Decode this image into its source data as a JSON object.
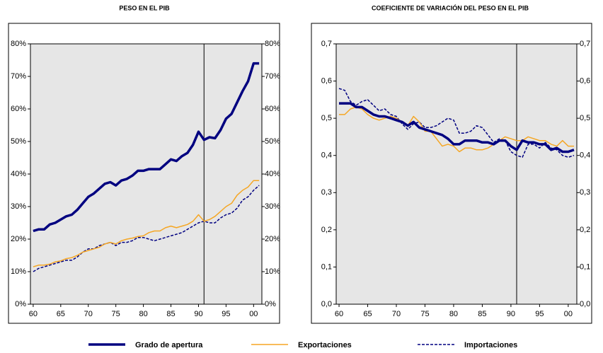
{
  "chart_data": [
    {
      "type": "line",
      "title": "PESO EN EL PIB",
      "x": [
        1960,
        1961,
        1962,
        1963,
        1964,
        1965,
        1966,
        1967,
        1968,
        1969,
        1970,
        1971,
        1972,
        1973,
        1974,
        1975,
        1976,
        1977,
        1978,
        1979,
        1980,
        1981,
        1982,
        1983,
        1984,
        1985,
        1986,
        1987,
        1988,
        1989,
        1990,
        1991,
        1992,
        1993,
        1994,
        1995,
        1996,
        1997,
        1998,
        1999,
        2000,
        2001
      ],
      "xlim": [
        1959.5,
        2001.5
      ],
      "xticks": [
        {
          "value": 1960,
          "label": "60"
        },
        {
          "value": 1965,
          "label": "65"
        },
        {
          "value": 1970,
          "label": "70"
        },
        {
          "value": 1975,
          "label": "75"
        },
        {
          "value": 1980,
          "label": "80"
        },
        {
          "value": 1985,
          "label": "85"
        },
        {
          "value": 1990,
          "label": "90"
        },
        {
          "value": 1995,
          "label": "95"
        },
        {
          "value": 2000,
          "label": "00"
        }
      ],
      "ylim": [
        0,
        80
      ],
      "yticks": [
        {
          "value": 0,
          "label": "0%"
        },
        {
          "value": 10,
          "label": "10%"
        },
        {
          "value": 20,
          "label": "20%"
        },
        {
          "value": 30,
          "label": "30%"
        },
        {
          "value": 40,
          "label": "40%"
        },
        {
          "value": 50,
          "label": "50%"
        },
        {
          "value": 60,
          "label": "60%"
        },
        {
          "value": 70,
          "label": "70%"
        },
        {
          "value": 80,
          "label": "80%"
        }
      ],
      "vline": 1991,
      "series": [
        {
          "name": "Grado de apertura",
          "color": "#000080",
          "linestyle": "solid",
          "values": [
            22.5,
            23,
            23,
            24.5,
            25,
            26,
            27,
            27.5,
            29,
            31,
            33,
            34,
            35.5,
            37,
            37.5,
            36.5,
            38,
            38.5,
            39.5,
            41,
            41,
            41.5,
            41.5,
            41.5,
            43,
            44.5,
            44,
            45.5,
            46.5,
            49,
            53,
            50.5,
            51.3,
            51,
            53.5,
            57,
            58.5,
            62,
            65.5,
            68.5,
            74,
            74
          ]
        },
        {
          "name": "Exportaciones",
          "color": "#f5a623",
          "linestyle": "solid",
          "values": [
            11.5,
            12,
            12,
            12.3,
            13,
            13.3,
            14,
            14.3,
            15,
            16,
            16.5,
            17,
            17.5,
            18.5,
            19,
            18.5,
            19.5,
            20,
            20.3,
            20.8,
            21,
            22,
            22.5,
            22.5,
            23.5,
            24,
            23.5,
            24,
            24.5,
            25.5,
            27.5,
            25.5,
            26,
            27,
            28.5,
            30,
            31,
            33.5,
            35,
            36,
            38,
            38
          ]
        },
        {
          "name": "Importaciones",
          "color": "#000080",
          "linestyle": "dashed",
          "values": [
            10,
            11,
            11.5,
            12,
            12.5,
            13,
            13.5,
            13.5,
            14.5,
            16,
            17,
            17,
            18,
            18.5,
            19,
            18,
            19,
            19,
            19.5,
            20.5,
            20.5,
            20,
            19.5,
            20,
            20.5,
            21,
            21.5,
            22,
            23,
            24,
            25,
            25.5,
            25,
            25,
            26.5,
            27.5,
            28,
            29.5,
            32,
            33,
            35,
            36.5
          ]
        }
      ]
    },
    {
      "type": "line",
      "title": "COEFICIENTE DE VARIACIÓN DEL PESO EN EL PIB",
      "x": [
        1960,
        1961,
        1962,
        1963,
        1964,
        1965,
        1966,
        1967,
        1968,
        1969,
        1970,
        1971,
        1972,
        1973,
        1974,
        1975,
        1976,
        1977,
        1978,
        1979,
        1980,
        1981,
        1982,
        1983,
        1984,
        1985,
        1986,
        1987,
        1988,
        1989,
        1990,
        1991,
        1992,
        1993,
        1994,
        1995,
        1996,
        1997,
        1998,
        1999,
        2000,
        2001
      ],
      "xlim": [
        1959.5,
        2001.5
      ],
      "xticks": [
        {
          "value": 1960,
          "label": "60"
        },
        {
          "value": 1965,
          "label": "65"
        },
        {
          "value": 1970,
          "label": "70"
        },
        {
          "value": 1975,
          "label": "75"
        },
        {
          "value": 1980,
          "label": "80"
        },
        {
          "value": 1985,
          "label": "85"
        },
        {
          "value": 1990,
          "label": "90"
        },
        {
          "value": 1995,
          "label": "95"
        },
        {
          "value": 2000,
          "label": "00"
        }
      ],
      "ylim": [
        0,
        0.7
      ],
      "yticks": [
        {
          "value": 0,
          "label": "0,0"
        },
        {
          "value": 0.1,
          "label": "0,1"
        },
        {
          "value": 0.2,
          "label": "0,2"
        },
        {
          "value": 0.3,
          "label": "0,3"
        },
        {
          "value": 0.4,
          "label": "0,4"
        },
        {
          "value": 0.5,
          "label": "0,5"
        },
        {
          "value": 0.6,
          "label": "0,6"
        },
        {
          "value": 0.7,
          "label": "0,7"
        }
      ],
      "vline": 1991,
      "series": [
        {
          "color": "#000080",
          "linestyle": "solid",
          "values": [
            0.54,
            0.54,
            0.54,
            0.53,
            0.53,
            0.52,
            0.51,
            0.505,
            0.505,
            0.5,
            0.495,
            0.49,
            0.48,
            0.49,
            0.475,
            0.47,
            0.465,
            0.46,
            0.455,
            0.445,
            0.43,
            0.43,
            0.44,
            0.44,
            0.44,
            0.435,
            0.435,
            0.43,
            0.44,
            0.44,
            0.425,
            0.415,
            0.44,
            0.435,
            0.435,
            0.43,
            0.43,
            0.415,
            0.42,
            0.41,
            0.41,
            0.415
          ]
        },
        {
          "color": "#f5a623",
          "linestyle": "solid",
          "values": [
            0.51,
            0.51,
            0.525,
            0.53,
            0.525,
            0.51,
            0.5,
            0.495,
            0.5,
            0.505,
            0.5,
            0.49,
            0.48,
            0.505,
            0.49,
            0.465,
            0.465,
            0.445,
            0.425,
            0.43,
            0.425,
            0.41,
            0.42,
            0.42,
            0.415,
            0.415,
            0.42,
            0.43,
            0.44,
            0.45,
            0.445,
            0.44,
            0.44,
            0.45,
            0.445,
            0.44,
            0.44,
            0.43,
            0.425,
            0.44,
            0.425,
            0.425
          ]
        },
        {
          "color": "#000080",
          "linestyle": "dashed",
          "values": [
            0.58,
            0.575,
            0.545,
            0.535,
            0.545,
            0.55,
            0.535,
            0.52,
            0.525,
            0.51,
            0.505,
            0.485,
            0.47,
            0.485,
            0.49,
            0.475,
            0.475,
            0.48,
            0.49,
            0.5,
            0.495,
            0.46,
            0.46,
            0.465,
            0.48,
            0.475,
            0.455,
            0.435,
            0.445,
            0.44,
            0.41,
            0.4,
            0.395,
            0.43,
            0.43,
            0.42,
            0.435,
            0.42,
            0.415,
            0.4,
            0.395,
            0.4
          ]
        }
      ]
    }
  ]
}
